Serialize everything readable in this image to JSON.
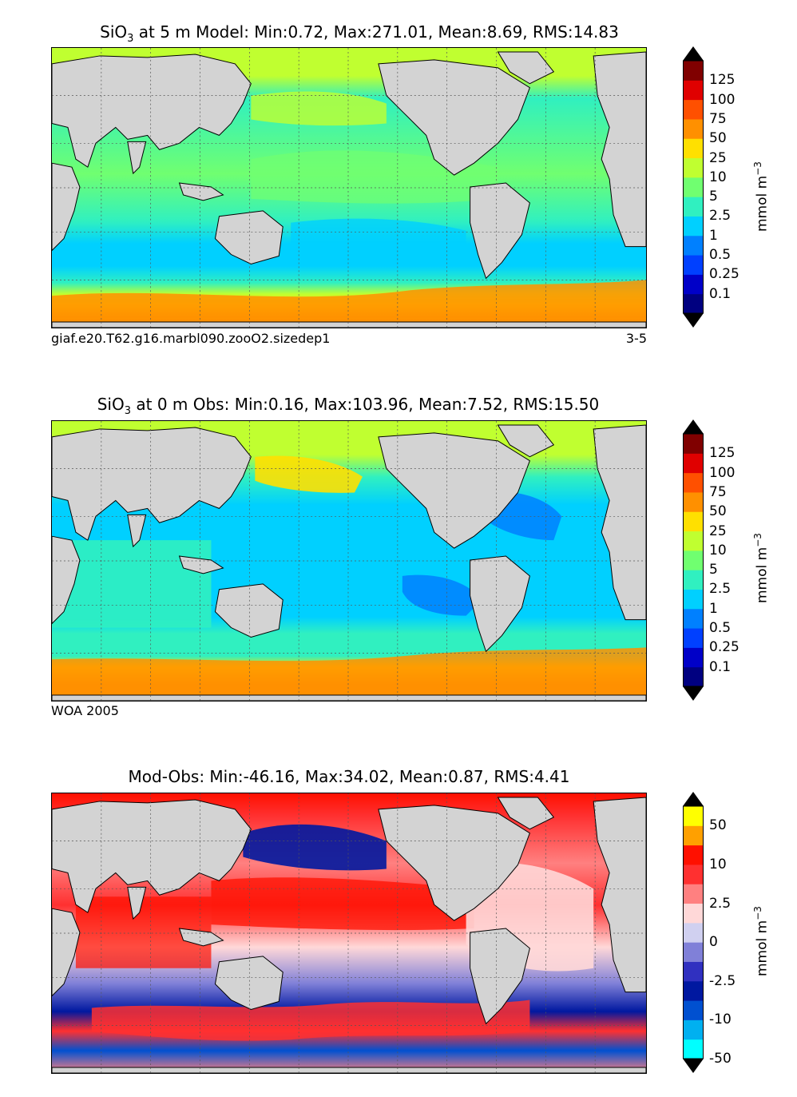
{
  "chart_data": [
    {
      "type": "heatmap",
      "title": "SiO$_3$ at 5 m Model: Min:0.72, Max:271.01, Mean:8.69, RMS:14.83",
      "title_parts": {
        "species": "SiO",
        "subscript": "3",
        "rest": " at 5 m Model: Min:0.72, Max:271.01, Mean:8.69, RMS:14.83"
      },
      "annotation_left": "giaf.e20.T62.g16.marbl090.zooO2.sizedep1",
      "annotation_right": "3-5",
      "colorbar": {
        "ticks": [
          "125",
          "100",
          "75",
          "50",
          "25",
          "10",
          "5",
          "2.5",
          "1",
          "0.5",
          "0.25",
          "0.1"
        ],
        "units": "mmol m$^{-3}$",
        "colors": [
          "#000080",
          "#0000c8",
          "#0040ff",
          "#0080ff",
          "#00d0ff",
          "#30f0c0",
          "#70ff70",
          "#c0ff30",
          "#ffe000",
          "#ff9000",
          "#ff5000",
          "#e00000",
          "#800000"
        ]
      },
      "fields": {
        "ocean": "SiO3 surface concentration (model)",
        "land_color": "#d3d3d3"
      }
    },
    {
      "type": "heatmap",
      "title": "SiO$_3$ at 0 m Obs: Min:0.16, Max:103.96, Mean:7.52, RMS:15.50",
      "title_parts": {
        "species": "SiO",
        "subscript": "3",
        "rest": " at 0 m Obs: Min:0.16, Max:103.96, Mean:7.52, RMS:15.50"
      },
      "annotation_left": "WOA 2005",
      "annotation_right": "",
      "colorbar": {
        "ticks": [
          "125",
          "100",
          "75",
          "50",
          "25",
          "10",
          "5",
          "2.5",
          "1",
          "0.5",
          "0.25",
          "0.1"
        ],
        "units": "mmol m$^{-3}$",
        "colors": [
          "#000080",
          "#0000c8",
          "#0040ff",
          "#0080ff",
          "#00d0ff",
          "#30f0c0",
          "#70ff70",
          "#c0ff30",
          "#ffe000",
          "#ff9000",
          "#ff5000",
          "#e00000",
          "#800000"
        ]
      },
      "fields": {
        "ocean": "SiO3 surface concentration (observed)",
        "land_color": "#d3d3d3"
      }
    },
    {
      "type": "heatmap",
      "title": "Mod-Obs: Min:-46.16, Max:34.02, Mean:0.87, RMS:4.41",
      "annotation_left": "",
      "annotation_right": "",
      "colorbar": {
        "ticks": [
          "50",
          "10",
          "2.5",
          "0",
          "-2.5",
          "-10",
          "-50"
        ],
        "units": "mmol m$^{-3}$",
        "colors": [
          "#00ffff",
          "#00b0f0",
          "#0050d0",
          "#0018a0",
          "#3030c0",
          "#8080d8",
          "#d0d0f0",
          "#ffd8d8",
          "#ff8080",
          "#ff3030",
          "#ff1000",
          "#ffa000",
          "#ffff00"
        ]
      },
      "fields": {
        "ocean": "Model minus observations",
        "land_color": "#d3d3d3"
      }
    }
  ]
}
